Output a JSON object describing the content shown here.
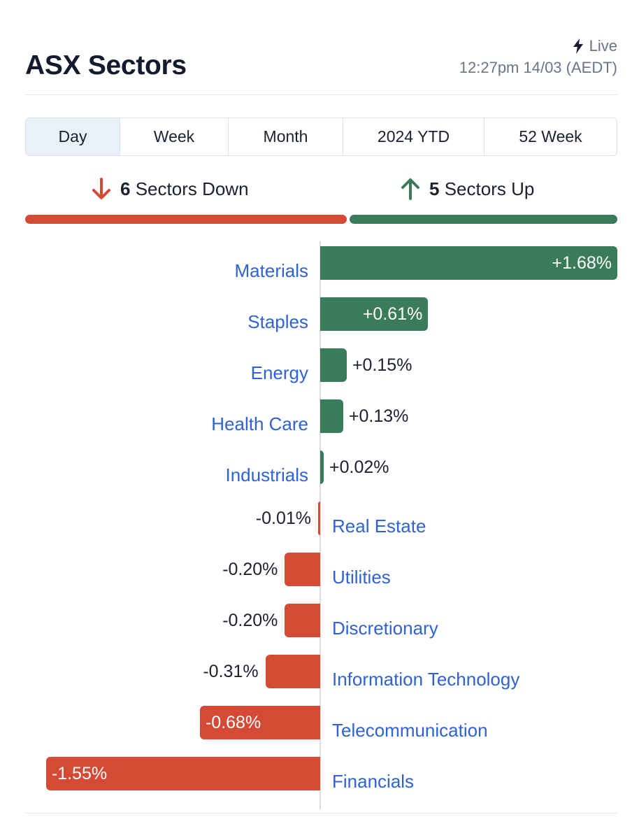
{
  "header": {
    "title": "ASX Sectors",
    "live_label": "Live",
    "timestamp": "12:27pm 14/03 (AEDT)"
  },
  "tabs": [
    {
      "label": "Day",
      "active": true
    },
    {
      "label": "Week",
      "active": false
    },
    {
      "label": "Month",
      "active": false
    },
    {
      "label": "2024 YTD",
      "active": false
    },
    {
      "label": "52 Week",
      "active": false
    }
  ],
  "summary": {
    "down_count": "6",
    "down_label": "Sectors Down",
    "up_count": "5",
    "up_label": "Sectors Up",
    "down_fraction": 0.545
  },
  "colors": {
    "up": "#3a7c5a",
    "down": "#d44a35",
    "link": "#2f62d6"
  },
  "icons": {
    "live": "lightning-bolt-icon",
    "down": "arrow-down-icon",
    "up": "arrow-up-icon"
  },
  "chart_data": {
    "type": "bar",
    "orientation": "horizontal-diverging",
    "categories": [
      "Materials",
      "Staples",
      "Energy",
      "Health Care",
      "Industrials",
      "Real Estate",
      "Utilities",
      "Discretionary",
      "Information Technology",
      "Telecommunication",
      "Financials"
    ],
    "values": [
      1.68,
      0.61,
      0.15,
      0.13,
      0.02,
      -0.01,
      -0.2,
      -0.2,
      -0.31,
      -0.68,
      -1.55
    ],
    "labels": [
      "+1.68%",
      "+0.61%",
      "+0.15%",
      "+0.13%",
      "+0.02%",
      "-0.01%",
      "-0.20%",
      "-0.20%",
      "-0.31%",
      "-0.68%",
      "-1.55%"
    ],
    "unit": "%"
  }
}
